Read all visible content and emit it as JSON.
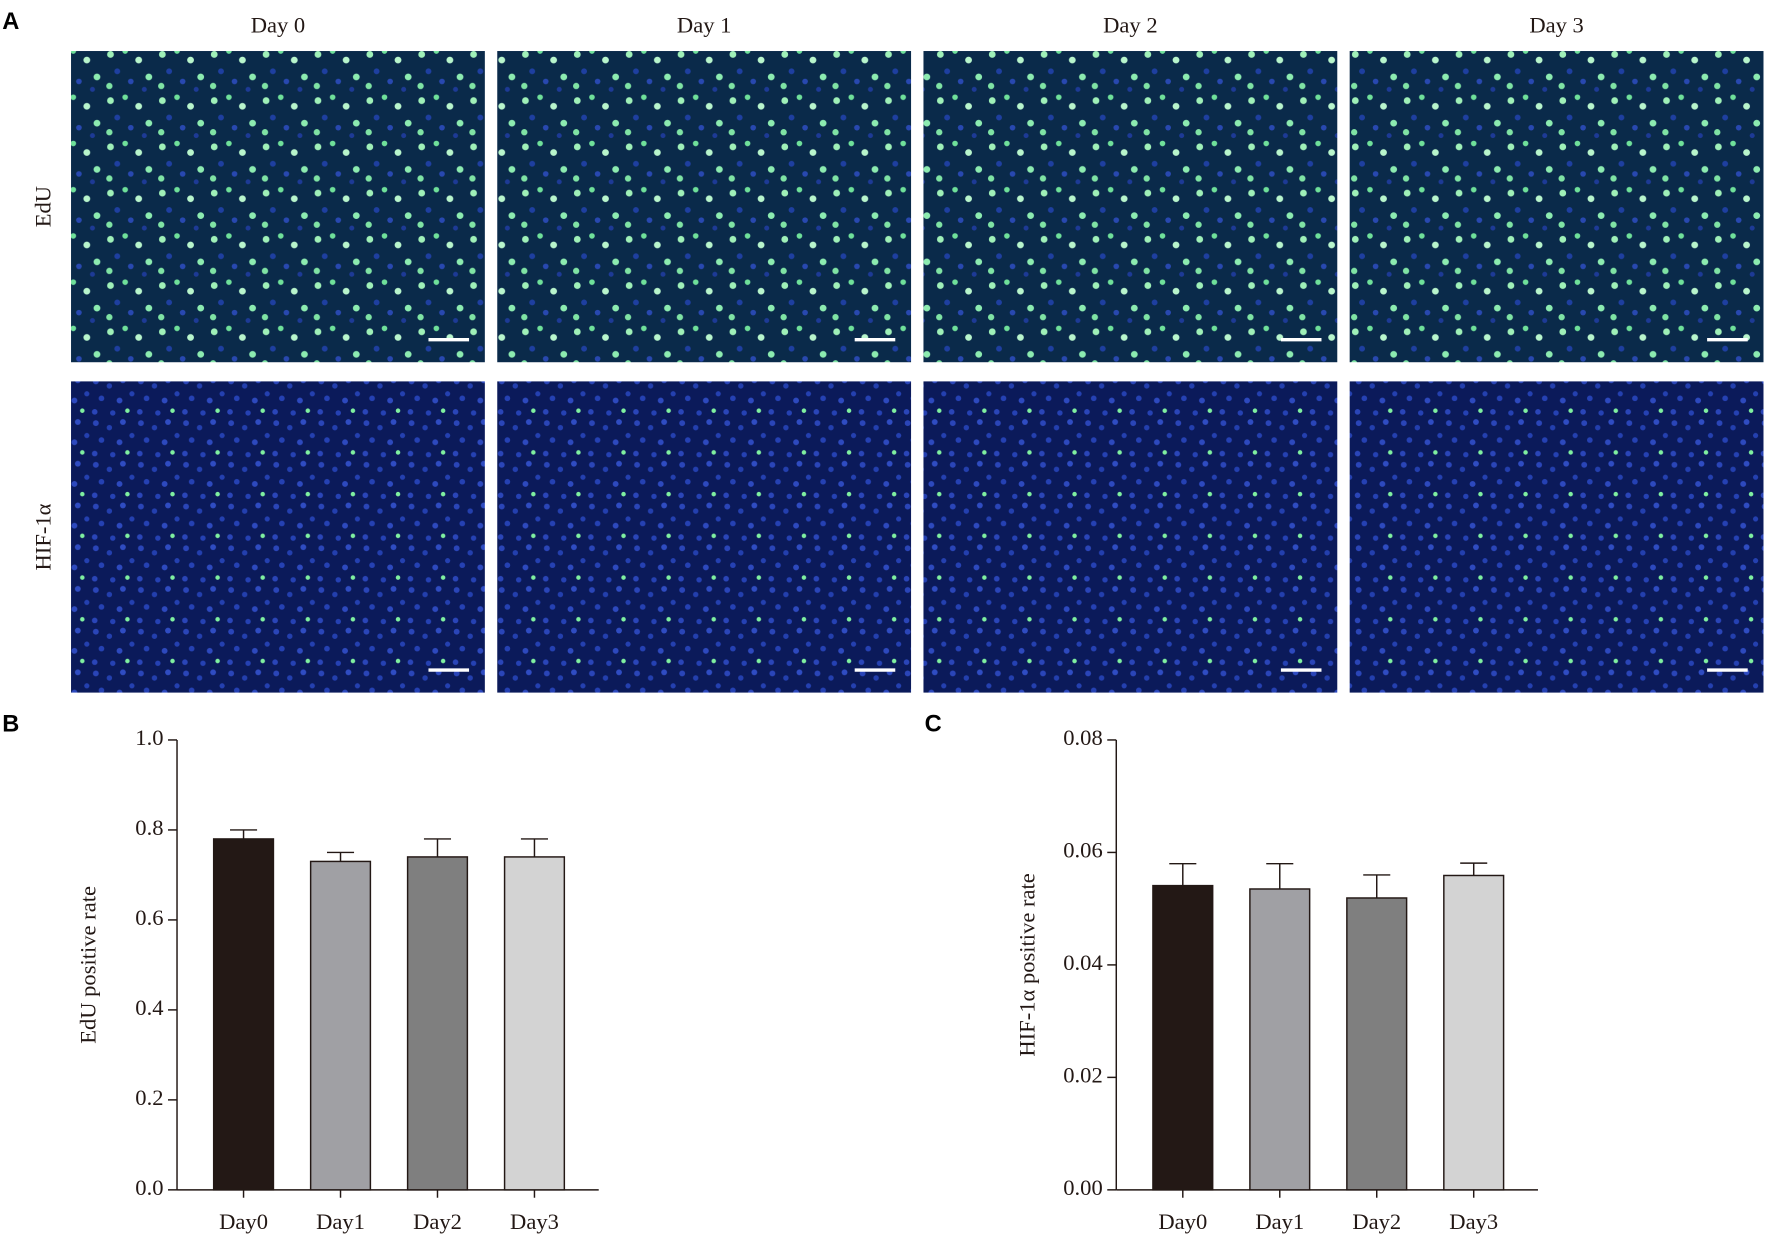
{
  "panel_labels": [
    "A",
    "B",
    "C"
  ],
  "micrographs": {
    "columns": [
      "Day 0",
      "Day 1",
      "Day 2",
      "Day 3"
    ],
    "rows": [
      "EdU",
      "HIF-1α"
    ]
  },
  "chart_data": [
    {
      "type": "bar",
      "y_label": "EdU positive rate",
      "categories": [
        "Day0",
        "Day1",
        "Day2",
        "Day3"
      ],
      "values": [
        0.78,
        0.73,
        0.74,
        0.74
      ],
      "errors": [
        0.02,
        0.02,
        0.04,
        0.04
      ],
      "colors": [
        "#231815",
        "#a0a0a4",
        "#7f7f7f",
        "#d3d3d3"
      ],
      "ylim": [
        0,
        1.0
      ],
      "yticks": [
        {
          "value": 0,
          "label": "0.0"
        },
        {
          "value": 0.2,
          "label": "0.2"
        },
        {
          "value": 0.4,
          "label": "0.4"
        },
        {
          "value": 0.6,
          "label": "0.6"
        },
        {
          "value": 0.8,
          "label": "0.8"
        },
        {
          "value": 1.0,
          "label": "1.0"
        }
      ]
    },
    {
      "type": "bar",
      "y_label": "HIF-1α positive rate",
      "categories": [
        "Day0",
        "Day1",
        "Day2",
        "Day3"
      ],
      "values": [
        0.0541,
        0.0535,
        0.0519,
        0.0559
      ],
      "errors": [
        0.0039,
        0.0045,
        0.0041,
        0.0022
      ],
      "colors": [
        "#231815",
        "#a0a0a4",
        "#7f7f7f",
        "#d3d3d3"
      ],
      "ylim": [
        0,
        0.08
      ],
      "yticks": [
        {
          "value": 0,
          "label": "0.00"
        },
        {
          "value": 0.02,
          "label": "0.02"
        },
        {
          "value": 0.04,
          "label": "0.04"
        },
        {
          "value": 0.06,
          "label": "0.06"
        },
        {
          "value": 0.08,
          "label": "0.08"
        }
      ]
    }
  ]
}
